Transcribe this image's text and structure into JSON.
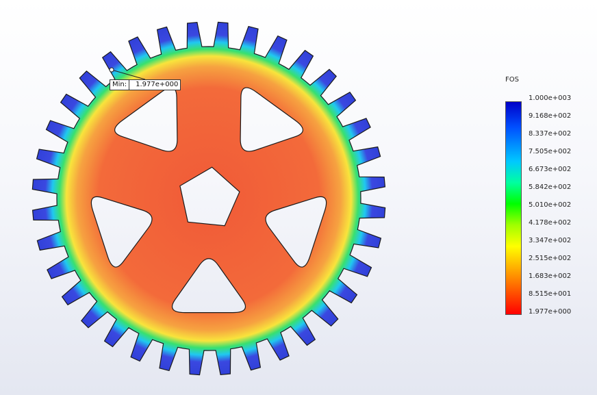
{
  "min_marker": {
    "label": "Min:",
    "value": "1.977e+000"
  },
  "legend": {
    "title": "FOS",
    "labels": [
      "1.000e+003",
      "9.168e+002",
      "8.337e+002",
      "7.505e+002",
      "6.673e+002",
      "5.842e+002",
      "5.010e+002",
      "4.178e+002",
      "3.347e+002",
      "2.515e+002",
      "1.683e+002",
      "8.515e+001",
      "1.977e+000"
    ]
  },
  "colors": {
    "body": "#f0603a",
    "body_hot": "#ff4a2e",
    "tooth_mid": "#f7e23a",
    "tooth_tip": "#3a48e0",
    "cutout": "#eef0f6",
    "outline": "#1a1a1a"
  },
  "gear": {
    "teeth": 36,
    "spokes": 5,
    "center_hole": "pentagon"
  }
}
